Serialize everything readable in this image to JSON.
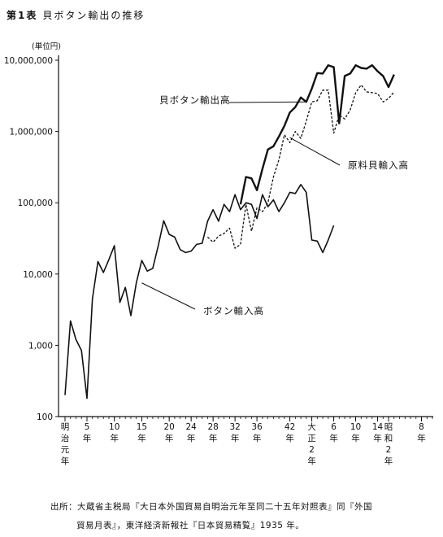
{
  "title": {
    "prefix": "第1表",
    "text": "貝ボタン輸出の推移"
  },
  "source": {
    "line1": "出所：大蔵省主税局『大日本外国貿易自明治元年至同二十五年対照表』同『外国",
    "line2": "貿易月表』，東洋経済新報社『日本貿易精覧』1935 年。"
  },
  "chart_data": {
    "type": "line",
    "y_scale": "log",
    "ylim": [
      100,
      10000000
    ],
    "yunit": "(単位円)",
    "yticks": [
      {
        "value": 100,
        "label": "100"
      },
      {
        "value": 1000,
        "label": "1,000"
      },
      {
        "value": 10000,
        "label": "10,000"
      },
      {
        "value": 100000,
        "label": "100,000"
      },
      {
        "value": 1000000,
        "label": "1,000,000"
      },
      {
        "value": 10000000,
        "label": "10,000,000"
      }
    ],
    "xlim": [
      1868,
      1935
    ],
    "xticks": [
      {
        "year": 1868,
        "label": [
          "明",
          "治",
          "元",
          "年"
        ]
      },
      {
        "year": 1872,
        "label": [
          "5",
          "年"
        ]
      },
      {
        "year": 1877,
        "label": [
          "10",
          "年"
        ]
      },
      {
        "year": 1882,
        "label": [
          "15",
          "年"
        ]
      },
      {
        "year": 1887,
        "label": [
          "20",
          "年"
        ]
      },
      {
        "year": 1891,
        "label": [
          "24",
          "年"
        ]
      },
      {
        "year": 1895,
        "label": [
          "28",
          "年"
        ]
      },
      {
        "year": 1899,
        "label": [
          "32",
          "年"
        ]
      },
      {
        "year": 1903,
        "label": [
          "36",
          "年"
        ]
      },
      {
        "year": 1909,
        "label": [
          "42",
          "年"
        ]
      },
      {
        "year": 1913,
        "label": [
          "大",
          "正",
          "2",
          "年"
        ]
      },
      {
        "year": 1917,
        "label": [
          "6",
          "年"
        ]
      },
      {
        "year": 1921,
        "label": [
          "10",
          "年"
        ]
      },
      {
        "year": 1925,
        "label": [
          "14",
          "年"
        ]
      },
      {
        "year": 1927,
        "label": [
          "昭",
          "和",
          "2",
          "年"
        ]
      },
      {
        "year": 1933,
        "label": [
          "8",
          "年"
        ]
      }
    ],
    "series": [
      {
        "name": "ボタン輸入高",
        "style": "solid",
        "color": "#111111",
        "points": [
          [
            1868,
            200
          ],
          [
            1869,
            2200
          ],
          [
            1870,
            1200
          ],
          [
            1871,
            850
          ],
          [
            1872,
            180
          ],
          [
            1873,
            4500
          ],
          [
            1874,
            15000
          ],
          [
            1875,
            10500
          ],
          [
            1876,
            16000
          ],
          [
            1877,
            25000
          ],
          [
            1878,
            4000
          ],
          [
            1879,
            6500
          ],
          [
            1880,
            2600
          ],
          [
            1881,
            7500
          ],
          [
            1882,
            15500
          ],
          [
            1883,
            11000
          ],
          [
            1884,
            12000
          ],
          [
            1885,
            25000
          ],
          [
            1886,
            56000
          ],
          [
            1887,
            36000
          ],
          [
            1888,
            33000
          ],
          [
            1889,
            22000
          ],
          [
            1890,
            20000
          ],
          [
            1891,
            21000
          ],
          [
            1892,
            26000
          ],
          [
            1893,
            27000
          ],
          [
            1894,
            55000
          ],
          [
            1895,
            80000
          ],
          [
            1896,
            55000
          ],
          [
            1897,
            95000
          ],
          [
            1898,
            75000
          ],
          [
            1899,
            130000
          ],
          [
            1900,
            80000
          ],
          [
            1901,
            100000
          ],
          [
            1902,
            95000
          ],
          [
            1903,
            60000
          ],
          [
            1904,
            130000
          ],
          [
            1905,
            88000
          ],
          [
            1906,
            110000
          ],
          [
            1907,
            75000
          ],
          [
            1908,
            100000
          ],
          [
            1909,
            140000
          ],
          [
            1910,
            135000
          ],
          [
            1911,
            180000
          ],
          [
            1912,
            140000
          ],
          [
            1913,
            30000
          ],
          [
            1914,
            29000
          ],
          [
            1915,
            20000
          ],
          [
            1916,
            30000
          ],
          [
            1917,
            48000
          ]
        ]
      },
      {
        "name": "原料貝輸入高",
        "style": "dashed",
        "color": "#111111",
        "points": [
          [
            1894,
            33000
          ],
          [
            1895,
            28000
          ],
          [
            1896,
            34000
          ],
          [
            1897,
            37000
          ],
          [
            1898,
            44000
          ],
          [
            1899,
            23000
          ],
          [
            1900,
            26000
          ],
          [
            1901,
            95000
          ],
          [
            1902,
            40000
          ],
          [
            1903,
            85000
          ],
          [
            1904,
            75000
          ],
          [
            1905,
            100000
          ],
          [
            1906,
            230000
          ],
          [
            1907,
            400000
          ],
          [
            1908,
            900000
          ],
          [
            1909,
            700000
          ],
          [
            1910,
            1000000
          ],
          [
            1911,
            800000
          ],
          [
            1912,
            1400000
          ],
          [
            1913,
            2600000
          ],
          [
            1914,
            2700000
          ],
          [
            1915,
            3800000
          ],
          [
            1916,
            3800000
          ],
          [
            1917,
            950000
          ],
          [
            1918,
            1700000
          ],
          [
            1919,
            1500000
          ],
          [
            1920,
            2000000
          ],
          [
            1921,
            3500000
          ],
          [
            1922,
            4500000
          ],
          [
            1923,
            3600000
          ],
          [
            1924,
            3500000
          ],
          [
            1925,
            3400000
          ],
          [
            1926,
            2600000
          ],
          [
            1927,
            2900000
          ],
          [
            1928,
            3600000
          ]
        ]
      },
      {
        "name": "貝ボタン輸出高",
        "style": "solid-bold",
        "color": "#111111",
        "points": [
          [
            1900,
            95000
          ],
          [
            1901,
            230000
          ],
          [
            1902,
            220000
          ],
          [
            1903,
            150000
          ],
          [
            1904,
            300000
          ],
          [
            1905,
            560000
          ],
          [
            1906,
            620000
          ],
          [
            1907,
            850000
          ],
          [
            1908,
            1200000
          ],
          [
            1909,
            1850000
          ],
          [
            1910,
            2200000
          ],
          [
            1911,
            3000000
          ],
          [
            1912,
            2600000
          ],
          [
            1913,
            4000000
          ],
          [
            1914,
            6600000
          ],
          [
            1915,
            6500000
          ],
          [
            1916,
            8500000
          ],
          [
            1917,
            8000000
          ],
          [
            1918,
            1300000
          ],
          [
            1919,
            6000000
          ],
          [
            1920,
            6500000
          ],
          [
            1921,
            8500000
          ],
          [
            1922,
            7800000
          ],
          [
            1923,
            7600000
          ],
          [
            1924,
            8500000
          ],
          [
            1925,
            7000000
          ],
          [
            1926,
            6000000
          ],
          [
            1927,
            4200000
          ],
          [
            1928,
            6300000
          ]
        ]
      }
    ],
    "annotations": [
      {
        "text": "貝ボタン輸出高",
        "target_year": 1912,
        "target_value": 2600000
      },
      {
        "text": "原料貝輸入高",
        "target_year": 1909,
        "target_value": 820000
      },
      {
        "text": "ボタン輸入高",
        "target_year": 1882,
        "target_value": 7500
      }
    ]
  }
}
